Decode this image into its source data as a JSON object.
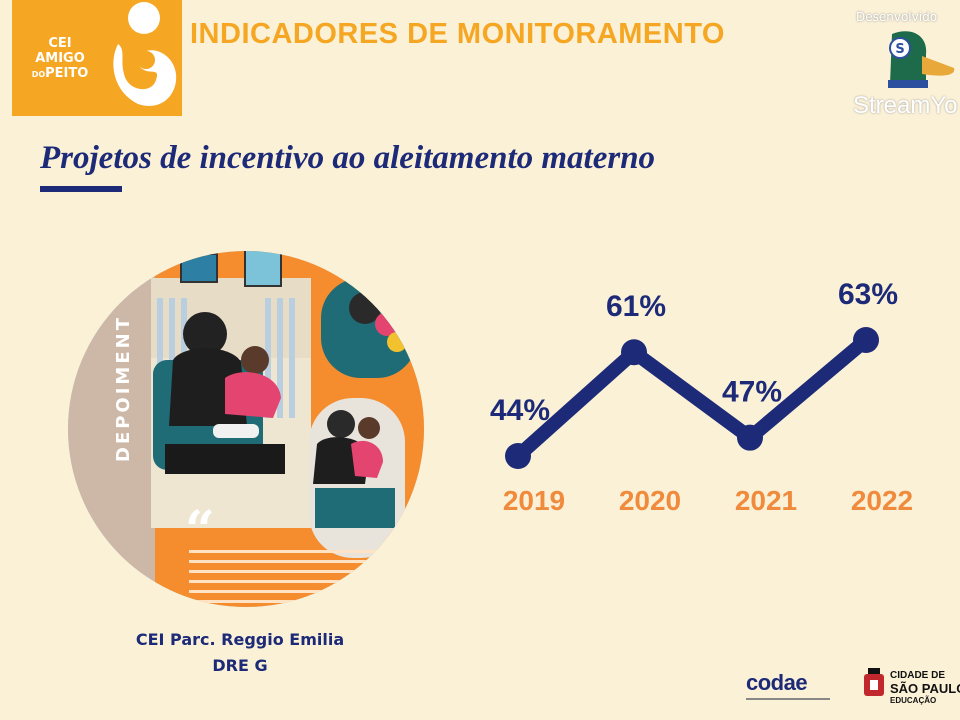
{
  "logo": {
    "line1": "CEI",
    "line2": "AMIGO",
    "line3_small": "DO",
    "line3": "PEITO"
  },
  "header": {
    "title": "INDICADORES DE MONITORAMENTO"
  },
  "watermark": {
    "label": "Desenvolvido",
    "brand": "StreamYo"
  },
  "slide": {
    "subtitle": "Projetos de incentivo ao aleitamento materno",
    "photo_banner": "DEPOIMENT",
    "caption_line1": "CEI Parc. Reggio Emilia",
    "caption_line2": "DRE G"
  },
  "chart_data": {
    "type": "line",
    "categories": [
      "2019",
      "2020",
      "2021",
      "2022"
    ],
    "values": [
      44,
      61,
      47,
      63
    ],
    "labels": [
      "44%",
      "61%",
      "47%",
      "63%"
    ],
    "line_color": "#1c2a78",
    "label_color": "#1c2a78",
    "category_color": "#f08a3c",
    "title": "",
    "xlabel": "",
    "ylabel": ""
  },
  "footer": {
    "codae": "codae",
    "sp_line1": "CIDADE DE",
    "sp_line2": "SÃO PAULO",
    "sp_line3": "EDUCAÇÃO"
  },
  "colors": {
    "background": "#fbf1d7",
    "orange": "#f5a623",
    "navy": "#1c2a78"
  }
}
